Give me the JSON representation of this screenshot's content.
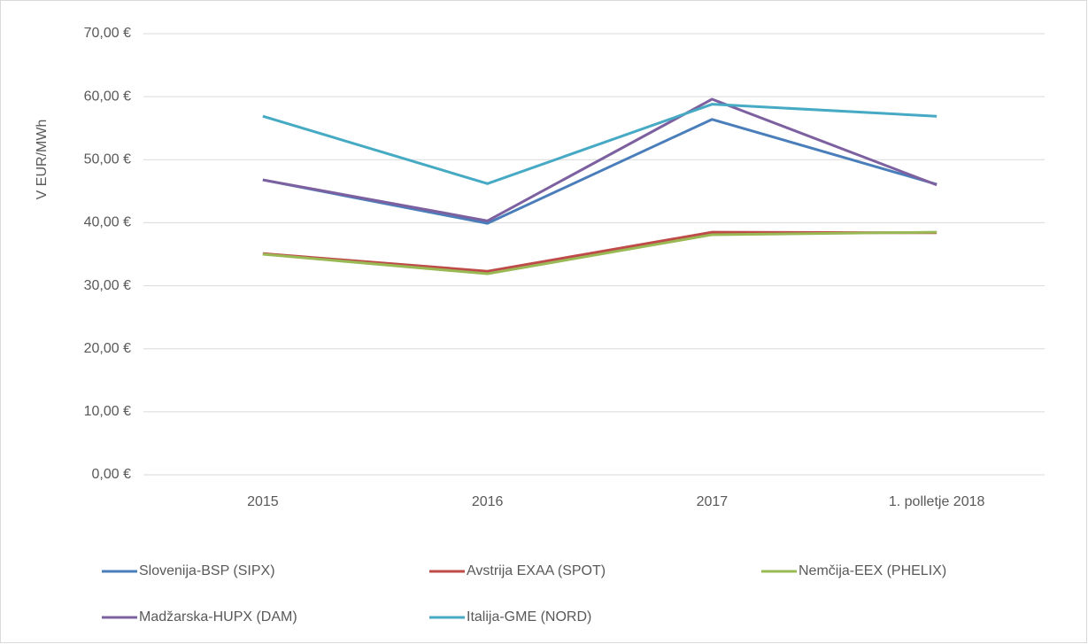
{
  "chart_data": {
    "type": "line",
    "y_label": "V EUR/MWh",
    "categories": [
      "2015",
      "2016",
      "2017",
      "1. polletje 2018"
    ],
    "series": [
      {
        "name": "Slovenija-BSP (SIPX)",
        "color": "#4a7ebb",
        "values": [
          46.8,
          39.9,
          56.4,
          46.1
        ]
      },
      {
        "name": "Avstrija EXAA (SPOT)",
        "color": "#be4b48",
        "values": [
          35.1,
          32.3,
          38.5,
          38.4
        ]
      },
      {
        "name": "Nemčija-EEX (PHELIX)",
        "color": "#98b954",
        "values": [
          35.0,
          31.9,
          38.1,
          38.5
        ]
      },
      {
        "name": "Madžarska-HUPX (DAM)",
        "color": "#7d60a0",
        "values": [
          46.8,
          40.3,
          59.6,
          46.0
        ]
      },
      {
        "name": "Italija-GME (NORD)",
        "color": "#46aac5",
        "values": [
          56.9,
          46.2,
          58.8,
          56.9
        ]
      }
    ],
    "ylim": [
      0,
      70
    ],
    "yticks": [
      {
        "value": 0,
        "label": "0,00 €"
      },
      {
        "value": 10,
        "label": "10,00 €"
      },
      {
        "value": 20,
        "label": "20,00 €"
      },
      {
        "value": 30,
        "label": "30,00 €"
      },
      {
        "value": 40,
        "label": "40,00 €"
      },
      {
        "value": 50,
        "label": "50,00 €"
      },
      {
        "value": 60,
        "label": "60,00 €"
      },
      {
        "value": 70,
        "label": "70,00 €"
      }
    ],
    "grid": true
  }
}
